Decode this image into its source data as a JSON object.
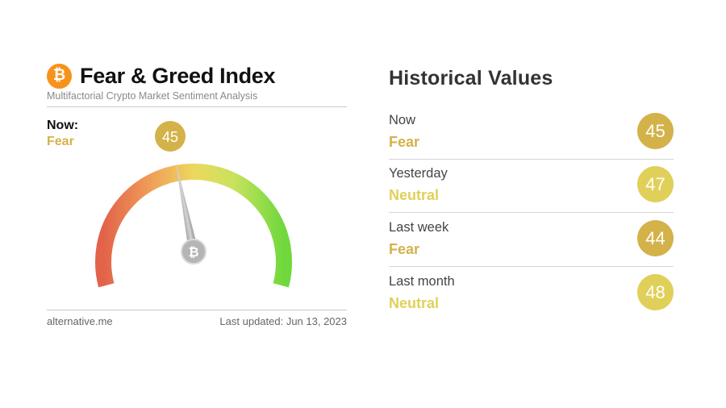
{
  "header": {
    "logo_glyph": "₿",
    "title": "Fear & Greed Index",
    "subtitle": "Multifactorial Crypto Market Sentiment Analysis"
  },
  "current": {
    "now_label": "Now:",
    "classification": "Fear",
    "value": "45",
    "value_fraction": 0.45
  },
  "footer": {
    "source": "alternative.me",
    "last_updated": "Last updated: Jun 13, 2023"
  },
  "historical": {
    "title": "Historical Values",
    "rows": [
      {
        "label": "Now",
        "classification": "Fear",
        "value": "45",
        "color": "#d4b24a"
      },
      {
        "label": "Yesterday",
        "classification": "Neutral",
        "value": "47",
        "color": "#e0d059"
      },
      {
        "label": "Last week",
        "classification": "Fear",
        "value": "44",
        "color": "#d4b24a"
      },
      {
        "label": "Last month",
        "classification": "Neutral",
        "value": "48",
        "color": "#e0d059"
      }
    ]
  },
  "colors": {
    "fear": "#d4b24a",
    "neutral": "#e0d059",
    "bitcoin_orange": "#f7931a"
  },
  "icons": {
    "logo": "bitcoin-icon",
    "needle_hub": "bitcoin-icon"
  }
}
